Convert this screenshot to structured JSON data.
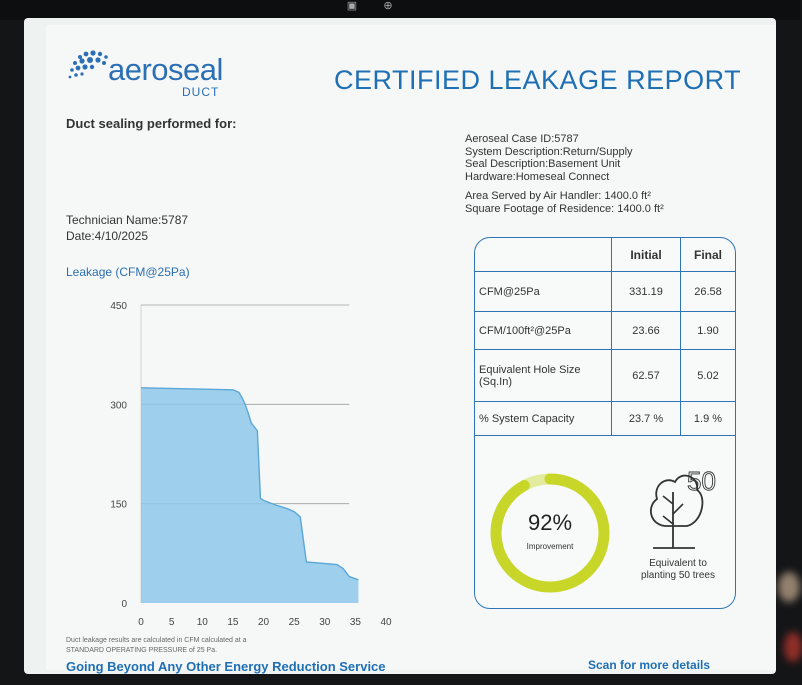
{
  "brand": {
    "name": "aeroseal",
    "sub": "DUCT",
    "color": "#2c6fb5"
  },
  "report_title": "CERTIFIED LEAKAGE REPORT",
  "performed_for_label": "Duct sealing performed for:",
  "technician": "Technician Name:5787",
  "date": "Date:4/10/2025",
  "info": {
    "case_id": "Aeroseal Case ID:5787",
    "system_description": "System Description:Return/Supply",
    "seal_description": "Seal Description:Basement Unit",
    "hardware": "Hardware:Homeseal Connect",
    "area_served": "Area Served by Air Handler: 1400.0 ft²",
    "square_footage": "Square Footage of Residence: 1400.0 ft²"
  },
  "results": {
    "headers": [
      "",
      "Initial",
      "Final"
    ],
    "rows": [
      {
        "label": "CFM@25Pa",
        "initial": "331.19",
        "final": "26.58"
      },
      {
        "label": "CFM/100ft²@25Pa",
        "initial": "23.66",
        "final": "1.90"
      },
      {
        "label": "Equivalent Hole Size (Sq.In)",
        "initial": "62.57",
        "final": "5.02"
      },
      {
        "label": "% System Capacity",
        "initial": "23.7 %",
        "final": "1.9 %"
      }
    ]
  },
  "improvement": {
    "percent_text": "92%",
    "label": "Improvement",
    "value": 0.92,
    "color": "#c8d62a"
  },
  "trees": {
    "number": "50",
    "caption_line1": "Equivalent to",
    "caption_line2": "planting 50 trees"
  },
  "footnote_line1": "Duct leakage results are calculated in CFM calculated at a",
  "footnote_line2": "STANDARD OPERATING PRESSURE of 25 Pa.",
  "tagline": "Going Beyond Any Other Energy Reduction Service",
  "scan_text": "Scan for more details",
  "chart_data": {
    "type": "area",
    "title": "Leakage (CFM@25Pa)",
    "xlabel": "",
    "ylabel": "",
    "xlim": [
      0,
      40
    ],
    "ylim": [
      0,
      450
    ],
    "x_ticks": [
      0,
      5,
      10,
      15,
      20,
      25,
      30,
      35,
      40
    ],
    "y_ticks": [
      0,
      150,
      300,
      450
    ],
    "grid": true,
    "fill_color": "#8ec8ea",
    "series": [
      {
        "x": [
          0,
          15,
          16,
          16.5,
          17,
          17.5,
          18,
          19,
          19.5,
          20,
          22,
          23,
          24,
          25,
          26,
          27,
          32,
          33,
          34,
          35.5
        ],
        "y": [
          325,
          322,
          318,
          310,
          300,
          287,
          272,
          260,
          158,
          155,
          148,
          145,
          142,
          138,
          130,
          62,
          58,
          52,
          40,
          35
        ]
      }
    ]
  }
}
